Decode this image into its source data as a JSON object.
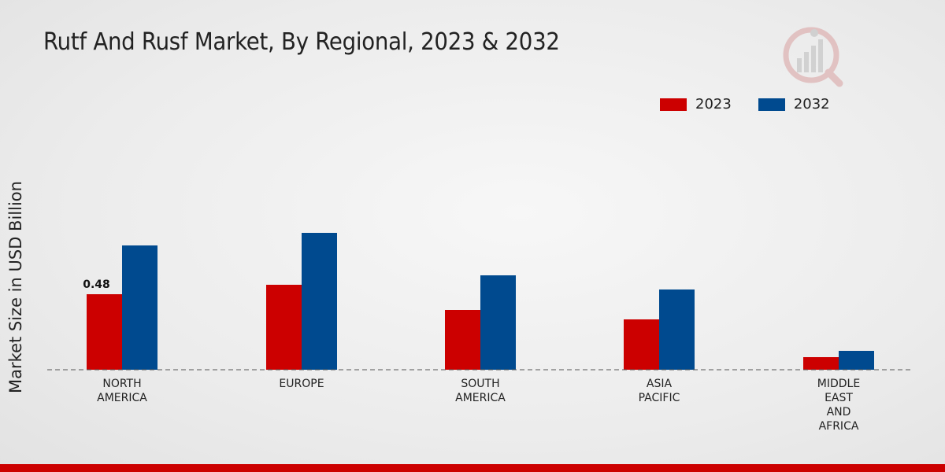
{
  "chart_data": {
    "type": "bar",
    "title": "Rutf And Rusf Market, By Regional, 2023 & 2032",
    "xlabel": "",
    "ylabel": "Market Size in USD Billion",
    "categories": [
      [
        "NORTH",
        "AMERICA"
      ],
      [
        "EUROPE"
      ],
      [
        "SOUTH",
        "AMERICA"
      ],
      [
        "ASIA",
        "PACIFIC"
      ],
      [
        "MIDDLE",
        "EAST",
        "AND",
        "AFRICA"
      ]
    ],
    "series": [
      {
        "name": "2023",
        "color": "#cc0000",
        "values": [
          0.48,
          0.54,
          0.38,
          0.32,
          0.08
        ]
      },
      {
        "name": "2032",
        "color": "#004a8f",
        "values": [
          0.79,
          0.87,
          0.6,
          0.51,
          0.12
        ]
      }
    ],
    "data_labels": [
      {
        "series": 0,
        "index": 0,
        "text": "0.48"
      }
    ],
    "ylim": [
      0,
      1.2
    ],
    "grid": false,
    "legend_position": "top-right"
  }
}
